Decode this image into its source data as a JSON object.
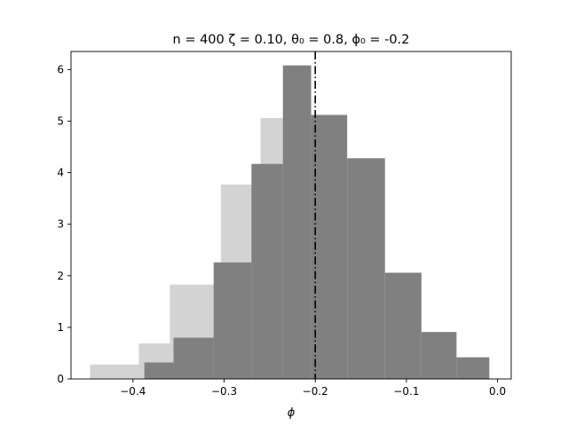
{
  "chart_data": {
    "type": "bar",
    "title": "n = 400 ζ = 0.10,  θ₀ = 0.8, ϕ₀ = -0.2",
    "xlabel": "ϕ",
    "ylabel": "",
    "xlim": [
      -0.468,
      0.015
    ],
    "ylim": [
      0,
      6.35
    ],
    "xticks": [
      -0.4,
      -0.3,
      -0.2,
      -0.1,
      0.0
    ],
    "xtick_labels": [
      "−0.4",
      "−0.3",
      "−0.2",
      "−0.1",
      "0.0"
    ],
    "yticks": [
      0,
      1,
      2,
      3,
      4,
      5,
      6
    ],
    "ytick_labels": [
      "0",
      "1",
      "2",
      "3",
      "4",
      "5",
      "6"
    ],
    "reference_line": {
      "x": -0.2,
      "style": "dash-dot",
      "color": "#000000"
    },
    "series": [
      {
        "color": "#d3d3d3",
        "bins": [
          {
            "x0": -0.447,
            "x1": -0.3935,
            "value": 0.28
          },
          {
            "x0": -0.3935,
            "x1": -0.3595,
            "value": 0.69
          },
          {
            "x0": -0.3595,
            "x1": -0.3035,
            "value": 1.83
          },
          {
            "x0": -0.3035,
            "x1": -0.26,
            "value": 3.77
          },
          {
            "x0": -0.26,
            "x1": -0.2283,
            "value": 5.06
          }
        ]
      },
      {
        "color": "#808080",
        "bins": [
          {
            "x0": -0.3875,
            "x1": -0.3555,
            "value": 0.32
          },
          {
            "x0": -0.3555,
            "x1": -0.3115,
            "value": 0.8
          },
          {
            "x0": -0.3115,
            "x1": -0.27,
            "value": 2.26
          },
          {
            "x0": -0.27,
            "x1": -0.2355,
            "value": 4.17
          },
          {
            "x0": -0.2355,
            "x1": -0.2045,
            "value": 6.08
          },
          {
            "x0": -0.2045,
            "x1": -0.165,
            "value": 5.12
          },
          {
            "x0": -0.165,
            "x1": -0.1235,
            "value": 4.28
          },
          {
            "x0": -0.1235,
            "x1": -0.0835,
            "value": 2.06
          },
          {
            "x0": -0.0835,
            "x1": -0.045,
            "value": 0.91
          },
          {
            "x0": -0.045,
            "x1": -0.009,
            "value": 0.42
          }
        ]
      }
    ]
  }
}
